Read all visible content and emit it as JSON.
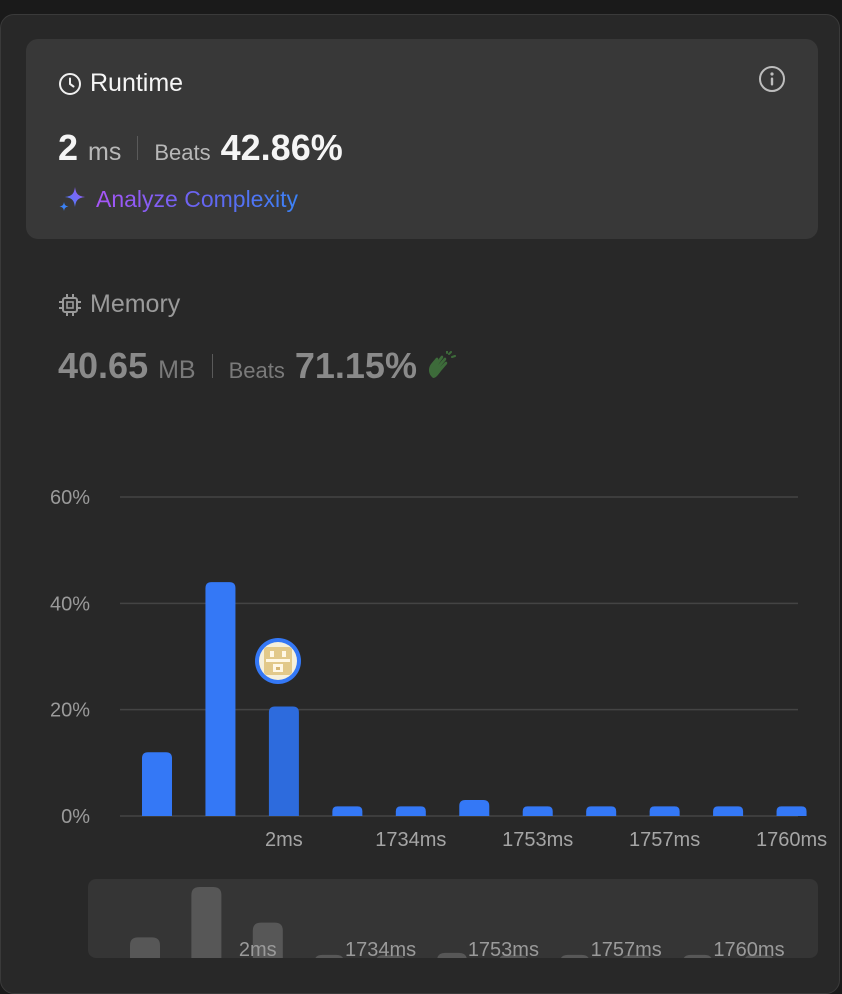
{
  "runtime": {
    "title": "Runtime",
    "value": "2",
    "unit": "ms",
    "beats_label": "Beats",
    "beats_value": "42.86%",
    "analyze_label": "Analyze Complexity"
  },
  "memory": {
    "title": "Memory",
    "value": "40.65",
    "unit": "MB",
    "beats_label": "Beats",
    "beats_value": "71.15%"
  },
  "colors": {
    "bar": "#3478f6",
    "bar_selected": "#2d6bdd",
    "mini_bar": "#575757",
    "accent_green": "#3d6b3a"
  },
  "chart_data": {
    "type": "bar",
    "unit": "%",
    "ylim": [
      0,
      60
    ],
    "yticks": [
      "60%",
      "40%",
      "20%",
      "0%"
    ],
    "ytick_values": [
      60,
      40,
      20,
      0
    ],
    "categories": [
      "",
      "",
      "2ms",
      "",
      "1734ms",
      "",
      "1753ms",
      "",
      "1757ms",
      "",
      "1760ms"
    ],
    "values": [
      12,
      44,
      20.6,
      1.8,
      1.8,
      3,
      1.8,
      1.8,
      1.8,
      1.8,
      1.8
    ],
    "selected_index": 2,
    "grid": true
  },
  "mini_chart": {
    "labels": [
      "",
      "",
      "2ms",
      "",
      "1734ms",
      "",
      "1753ms",
      "",
      "1757ms",
      "",
      "1760ms"
    ]
  }
}
